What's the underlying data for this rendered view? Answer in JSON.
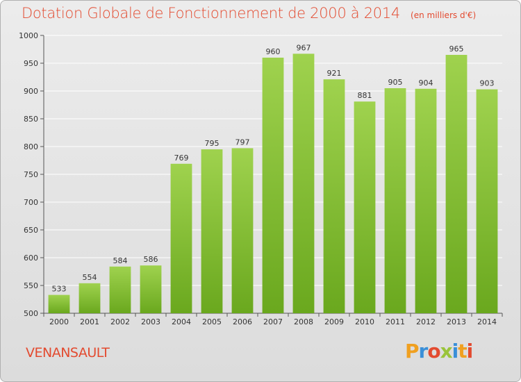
{
  "header": {
    "title": "Dotation Globale de Fonctionnement de 2000 à 2014",
    "unit": "(en milliers d'€)"
  },
  "footer": {
    "city": "VENANSAULT",
    "logo": "Proxiti"
  },
  "colors": {
    "title": "#e34a2f",
    "bar_light": "#9fd24e",
    "bar_dark": "#6aa81e"
  },
  "chart_data": {
    "type": "bar",
    "title": "Dotation Globale de Fonctionnement de 2000 à 2014",
    "subtitle": "(en milliers d'€)",
    "xlabel": "",
    "ylabel": "",
    "categories": [
      "2000",
      "2001",
      "2002",
      "2003",
      "2004",
      "2005",
      "2006",
      "2007",
      "2008",
      "2009",
      "2010",
      "2011",
      "2012",
      "2013",
      "2014"
    ],
    "values": [
      533,
      554,
      584,
      586,
      769,
      795,
      797,
      960,
      967,
      921,
      881,
      905,
      904,
      965,
      903
    ],
    "ylim": [
      500,
      1000
    ],
    "yticks": [
      500,
      550,
      600,
      650,
      700,
      750,
      800,
      850,
      900,
      950,
      1000
    ],
    "grid": true,
    "legend": "none"
  }
}
